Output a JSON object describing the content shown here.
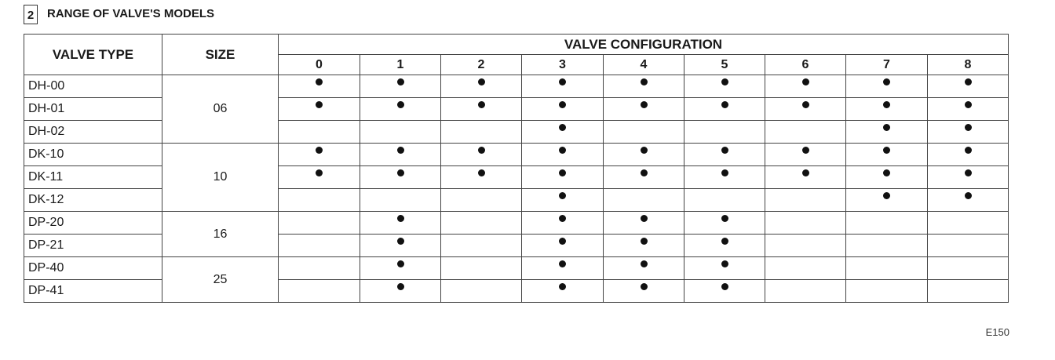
{
  "section": {
    "number": "2",
    "title": "RANGE OF VALVE'S MODELS"
  },
  "table": {
    "valve_type_header": "VALVE TYPE",
    "size_header": "SIZE",
    "config_header": "VALVE CONFIGURATION",
    "configs": [
      "0",
      "1",
      "2",
      "3",
      "4",
      "5",
      "6",
      "7",
      "8"
    ],
    "groups": [
      {
        "size": "06",
        "rows": [
          {
            "type": "DH-00",
            "available": [
              "0",
              "1",
              "2",
              "3",
              "4",
              "5",
              "6",
              "7",
              "8"
            ]
          },
          {
            "type": "DH-01",
            "available": [
              "0",
              "1",
              "2",
              "3",
              "4",
              "5",
              "6",
              "7",
              "8"
            ]
          },
          {
            "type": "DH-02",
            "available": [
              "3",
              "7",
              "8"
            ]
          }
        ]
      },
      {
        "size": "10",
        "rows": [
          {
            "type": "DK-10",
            "available": [
              "0",
              "1",
              "2",
              "3",
              "4",
              "5",
              "6",
              "7",
              "8"
            ]
          },
          {
            "type": "DK-11",
            "available": [
              "0",
              "1",
              "2",
              "3",
              "4",
              "5",
              "6",
              "7",
              "8"
            ]
          },
          {
            "type": "DK-12",
            "available": [
              "3",
              "7",
              "8"
            ]
          }
        ]
      },
      {
        "size": "16",
        "rows": [
          {
            "type": "DP-20",
            "available": [
              "1",
              "3",
              "4",
              "5"
            ]
          },
          {
            "type": "DP-21",
            "available": [
              "1",
              "3",
              "4",
              "5"
            ]
          }
        ]
      },
      {
        "size": "25",
        "rows": [
          {
            "type": "DP-40",
            "available": [
              "1",
              "3",
              "4",
              "5"
            ]
          },
          {
            "type": "DP-41",
            "available": [
              "1",
              "3",
              "4",
              "5"
            ]
          }
        ]
      }
    ]
  },
  "page_code": "E150"
}
